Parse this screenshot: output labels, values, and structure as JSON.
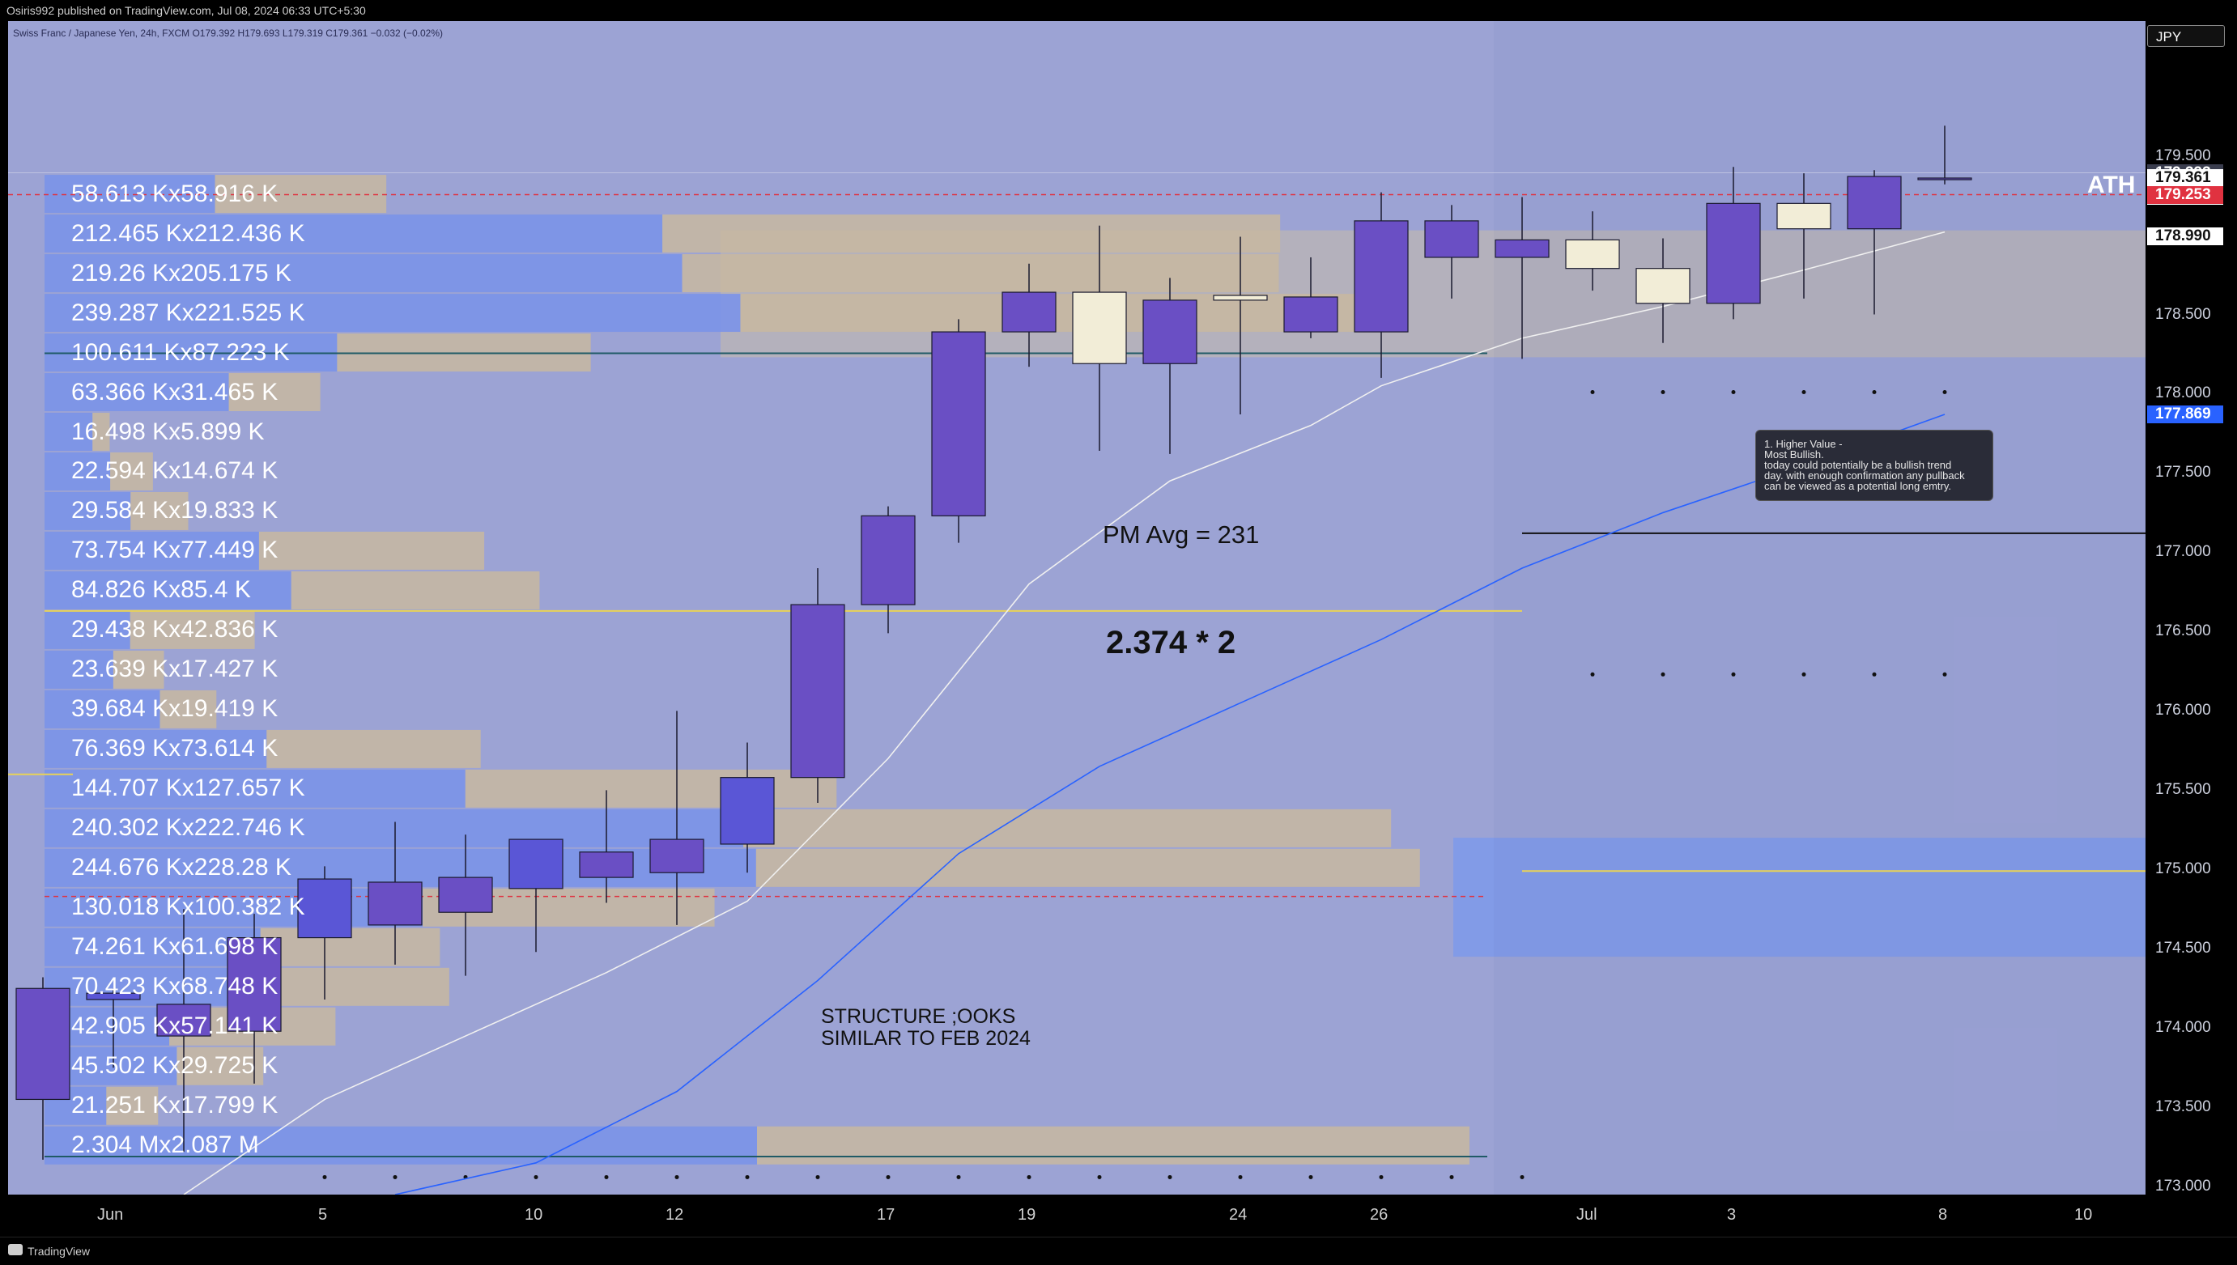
{
  "header": {
    "publisher_line": "Osiris992 published on TradingView.com, Jul 08, 2024 06:33 UTC+5:30",
    "symbol_line": "Swiss Franc / Japanese Yen, 24h, FXCM  O179.392  H179.693  L179.319  C179.361  −0.032 (−0.02%)"
  },
  "footer": {
    "brand": "TradingView"
  },
  "chart_data": {
    "type": "candlestick",
    "currency": "JPY",
    "y_range": [
      172.95,
      180.35
    ],
    "y_ticks": [
      "179.500",
      "178.500",
      "178.000",
      "177.500",
      "177.000",
      "176.500",
      "176.000",
      "175.500",
      "175.000",
      "174.500",
      "174.000",
      "173.500",
      "173.000"
    ],
    "x_ticks": [
      "Jun",
      "5",
      "10",
      "12",
      "17",
      "19",
      "24",
      "26",
      "Jul",
      "3",
      "8",
      "10"
    ],
    "x_tick_index": [
      1,
      4,
      7,
      9,
      12,
      14,
      17,
      19,
      22,
      24,
      27,
      29
    ],
    "candles": [
      {
        "i": 0,
        "o": 173.55,
        "h": 174.32,
        "l": 173.17,
        "c": 174.25
      },
      {
        "i": 1,
        "o": 174.18,
        "h": 174.25,
        "l": 173.75,
        "c": 174.22
      },
      {
        "i": 2,
        "o": 173.95,
        "h": 174.75,
        "l": 173.22,
        "c": 174.15
      },
      {
        "i": 3,
        "o": 173.98,
        "h": 174.72,
        "l": 173.65,
        "c": 174.57
      },
      {
        "i": 4,
        "o": 174.57,
        "h": 175.02,
        "l": 174.18,
        "c": 174.94
      },
      {
        "i": 5,
        "o": 174.65,
        "h": 175.3,
        "l": 174.4,
        "c": 174.92
      },
      {
        "i": 6,
        "o": 174.73,
        "h": 175.22,
        "l": 174.33,
        "c": 174.95
      },
      {
        "i": 7,
        "o": 174.88,
        "h": 175.19,
        "l": 174.48,
        "c": 175.19
      },
      {
        "i": 8,
        "o": 174.95,
        "h": 175.5,
        "l": 174.79,
        "c": 175.11
      },
      {
        "i": 9,
        "o": 174.98,
        "h": 176.0,
        "l": 174.65,
        "c": 175.19
      },
      {
        "i": 10,
        "o": 175.16,
        "h": 175.8,
        "l": 174.98,
        "c": 175.58
      },
      {
        "i": 11,
        "o": 175.58,
        "h": 176.9,
        "l": 175.42,
        "c": 176.67
      },
      {
        "i": 12,
        "o": 176.67,
        "h": 177.29,
        "l": 176.49,
        "c": 177.23
      },
      {
        "i": 13,
        "o": 177.23,
        "h": 178.47,
        "l": 177.06,
        "c": 178.39
      },
      {
        "i": 14,
        "o": 178.39,
        "h": 178.82,
        "l": 178.17,
        "c": 178.64
      },
      {
        "i": 15,
        "o": 178.64,
        "h": 179.06,
        "l": 177.64,
        "c": 178.19
      },
      {
        "i": 16,
        "o": 178.19,
        "h": 178.73,
        "l": 177.62,
        "c": 178.59
      },
      {
        "i": 17,
        "o": 178.62,
        "h": 178.99,
        "l": 177.87,
        "c": 178.59
      },
      {
        "i": 18,
        "o": 178.39,
        "h": 178.86,
        "l": 178.35,
        "c": 178.61
      },
      {
        "i": 19,
        "o": 178.39,
        "h": 179.27,
        "l": 178.1,
        "c": 179.09
      },
      {
        "i": 20,
        "o": 178.86,
        "h": 179.19,
        "l": 178.6,
        "c": 179.09
      },
      {
        "i": 21,
        "o": 178.86,
        "h": 179.24,
        "l": 178.22,
        "c": 178.97
      },
      {
        "i": 22,
        "o": 178.97,
        "h": 179.15,
        "l": 178.65,
        "c": 178.79
      },
      {
        "i": 23,
        "o": 178.79,
        "h": 178.98,
        "l": 178.32,
        "c": 178.57
      },
      {
        "i": 24,
        "o": 178.57,
        "h": 179.43,
        "l": 178.47,
        "c": 179.2
      },
      {
        "i": 25,
        "o": 179.2,
        "h": 179.39,
        "l": 178.6,
        "c": 179.04
      },
      {
        "i": 26,
        "o": 179.04,
        "h": 179.41,
        "l": 178.5,
        "c": 179.37
      },
      {
        "i": 27,
        "o": 179.36,
        "h": 179.69,
        "l": 179.32,
        "c": 179.36
      }
    ],
    "price_labels": [
      {
        "value": 179.393,
        "text": "179.393",
        "bg": "#3a3d4e",
        "fg": "#ffffff"
      },
      {
        "value": 179.361,
        "text": "179.361",
        "bg": "#ffffff",
        "fg": "#111111"
      },
      {
        "value": 179.25,
        "text": "19:56:57",
        "bg": "#ffffff",
        "fg": "#111111"
      },
      {
        "value": 179.253,
        "text": "179.253",
        "bg": "#e03240",
        "fg": "#ffffff"
      },
      {
        "value": 178.99,
        "text": "178.990",
        "bg": "#ffffff",
        "fg": "#111111"
      },
      {
        "value": 177.869,
        "text": "177.869",
        "bg": "#2962ff",
        "fg": "#ffffff"
      }
    ],
    "volume_profile": [
      {
        "text": "58.613 Kx58.916 K",
        "price": 179.26,
        "buy": 58.613,
        "sell": 58.916
      },
      {
        "text": "212.465 Kx212.436 K",
        "price": 179.01,
        "buy": 212.465,
        "sell": 212.436
      },
      {
        "text": "219.26 Kx205.175 K",
        "price": 178.76,
        "buy": 219.26,
        "sell": 205.175
      },
      {
        "text": "239.287 Kx221.525 K",
        "price": 178.51,
        "buy": 239.287,
        "sell": 221.525
      },
      {
        "text": "100.611 Kx87.223 K",
        "price": 178.26,
        "buy": 100.611,
        "sell": 87.223
      },
      {
        "text": "63.366 Kx31.465 K",
        "price": 178.01,
        "buy": 63.366,
        "sell": 31.465
      },
      {
        "text": "16.498 Kx5.899 K",
        "price": 177.76,
        "buy": 16.498,
        "sell": 5.899
      },
      {
        "text": "22.594 Kx14.674 K",
        "price": 177.51,
        "buy": 22.594,
        "sell": 14.674
      },
      {
        "text": "29.584 Kx19.833 K",
        "price": 177.26,
        "buy": 29.584,
        "sell": 19.833
      },
      {
        "text": "73.754 Kx77.449 K",
        "price": 177.01,
        "buy": 73.754,
        "sell": 77.449
      },
      {
        "text": "84.826 Kx85.4 K",
        "price": 176.76,
        "buy": 84.826,
        "sell": 85.4
      },
      {
        "text": "29.438 Kx42.836 K",
        "price": 176.51,
        "buy": 29.438,
        "sell": 42.836
      },
      {
        "text": "23.639 Kx17.427 K",
        "price": 176.26,
        "buy": 23.639,
        "sell": 17.427
      },
      {
        "text": "39.684 Kx19.419 K",
        "price": 176.01,
        "buy": 39.684,
        "sell": 19.419
      },
      {
        "text": "76.369 Kx73.614 K",
        "price": 175.76,
        "buy": 76.369,
        "sell": 73.614
      },
      {
        "text": "144.707 Kx127.657 K",
        "price": 175.51,
        "buy": 144.707,
        "sell": 127.657
      },
      {
        "text": "240.302 Kx222.746 K",
        "price": 175.26,
        "buy": 240.302,
        "sell": 222.746
      },
      {
        "text": "244.676 Kx228.28 K",
        "price": 175.01,
        "buy": 244.676,
        "sell": 228.28
      },
      {
        "text": "130.018 Kx100.382 K",
        "price": 174.76,
        "buy": 130.018,
        "sell": 100.382
      },
      {
        "text": "74.261 Kx61.698 K",
        "price": 174.51,
        "buy": 74.261,
        "sell": 61.698
      },
      {
        "text": "70.423 Kx68.748 K",
        "price": 174.26,
        "buy": 70.423,
        "sell": 68.748
      },
      {
        "text": "42.905 Kx57.141 K",
        "price": 174.01,
        "buy": 42.905,
        "sell": 57.141
      },
      {
        "text": "45.502 Kx29.725 K",
        "price": 173.76,
        "buy": 45.502,
        "sell": 29.725
      },
      {
        "text": "21.251 Kx17.799 K",
        "price": 173.51,
        "buy": 21.251,
        "sell": 17.799
      },
      {
        "text": "2.304 Mx2.087 M",
        "price": 173.26,
        "buy": 2304,
        "sell": 2087
      }
    ],
    "annotations": {
      "pm_avg": "PM Avg = 231",
      "ratio": "2.374 * 2",
      "structure_1": "STRUCTURE ;OOKS",
      "structure_2": "SIMILAR TO FEB 2024",
      "ath": "ATH",
      "note_1": "1. Higher Value -",
      "note_2": "Most Bullish.",
      "note_3": "today could potentially be a bullish trend",
      "note_4": "day. with enough confirmation any pullback",
      "note_5": "can be viewed as a potential long emtry."
    },
    "colors": {
      "bull_body": "#6a4fc4",
      "bear_body": "#f2edd7",
      "blue_body": "#5a56d6",
      "buy_vol": "#7b94e8",
      "sell_vol": "#c8b9a0",
      "ema_fast": "#f0f0f0",
      "ema_slow": "#2962ff",
      "poc": "#e8d257"
    }
  }
}
